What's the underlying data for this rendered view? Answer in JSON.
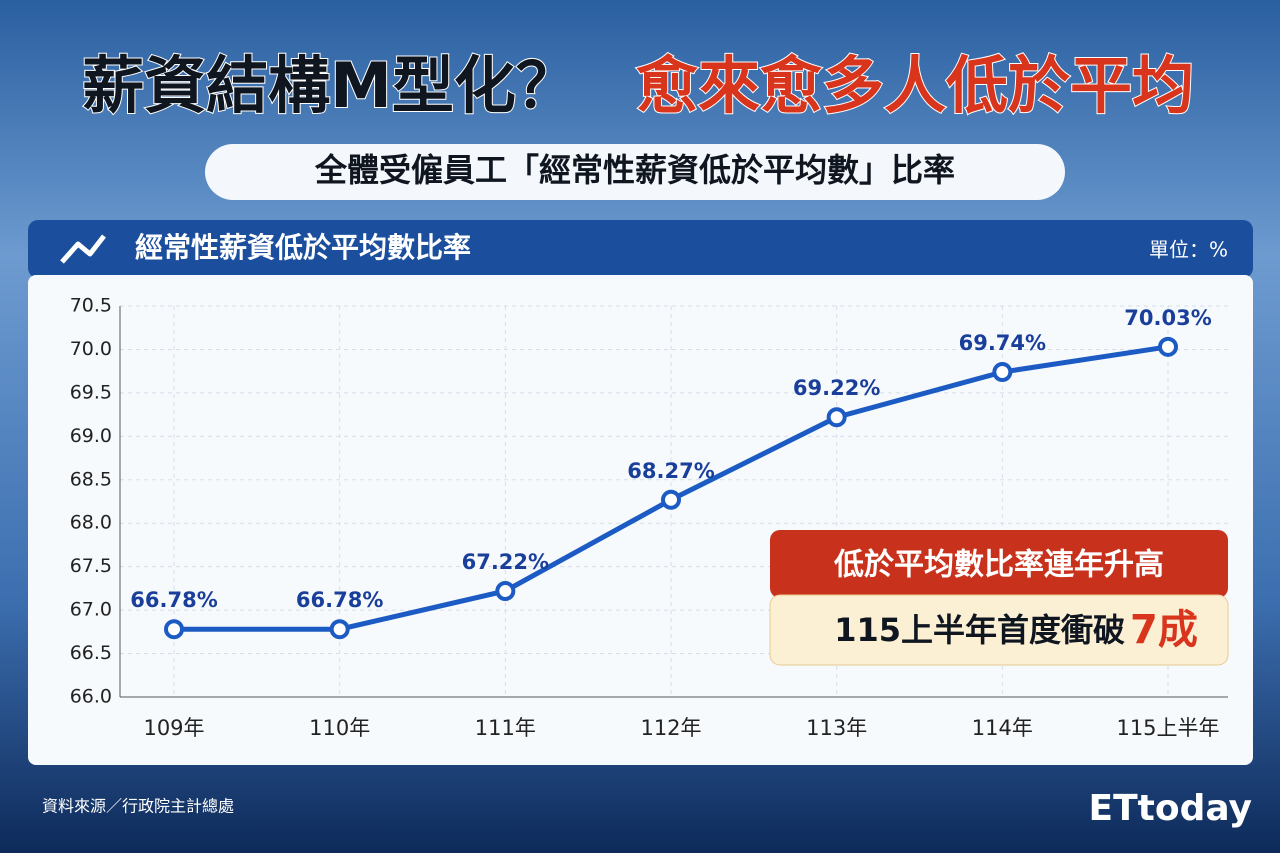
{
  "header": {
    "title_part1": "薪資結構M型化？",
    "title_part2": "愈來愈多人低於平均",
    "subtitle": "全體受僱員工「經常性薪資低於平均數」比率"
  },
  "chart_data": {
    "type": "line",
    "title": "經常性薪資低於平均數比率",
    "unit": "單位：%",
    "categories": [
      "109年",
      "110年",
      "111年",
      "112年",
      "113年",
      "114年",
      "115上半年"
    ],
    "series": [
      {
        "color": "#1c5bc4",
        "values": [
          66.78,
          66.78,
          67.22,
          68.27,
          69.22,
          69.74,
          70.03
        ],
        "value_labels": [
          "66.78%",
          "66.78%",
          "67.22%",
          "68.27%",
          "69.22%",
          "69.74%",
          "70.03%"
        ]
      }
    ],
    "ylim": [
      66.0,
      70.5
    ],
    "yticks": [
      {
        "value": 66,
        "label": "66.0"
      },
      66.5,
      {
        "value": 67,
        "label": "67.0"
      },
      67.5,
      {
        "value": 68,
        "label": "68.0"
      },
      68.5,
      {
        "value": 69,
        "label": "69.0"
      },
      69.5,
      {
        "value": 70,
        "label": "70.0"
      },
      70.5
    ],
    "grid": true
  },
  "callout": {
    "line1": "低於平均數比率連年升高",
    "line2": "115上半年首度衝破",
    "highlight": "7成"
  },
  "footer": {
    "source": "資料來源／行政院主計總處",
    "logo": "ETtoday"
  }
}
